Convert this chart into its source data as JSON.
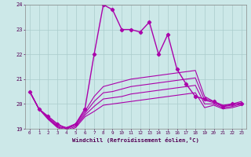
{
  "xlabel": "Windchill (Refroidissement éolien,°C)",
  "bg_color": "#cce8e8",
  "line_color": "#aa00aa",
  "grid_color": "#aacccc",
  "x": [
    0,
    1,
    2,
    3,
    4,
    5,
    6,
    7,
    8,
    9,
    10,
    11,
    12,
    13,
    14,
    15,
    16,
    17,
    18,
    19,
    20,
    21,
    22,
    23
  ],
  "series1": [
    20.5,
    19.8,
    19.5,
    19.2,
    19.0,
    19.2,
    19.8,
    22.0,
    24.0,
    23.8,
    23.0,
    23.0,
    22.9,
    23.3,
    22.0,
    22.8,
    21.4,
    20.8,
    20.3,
    20.2,
    20.1,
    19.9,
    20.0,
    20.0
  ],
  "series2": [
    20.5,
    19.8,
    19.45,
    19.15,
    19.05,
    19.2,
    19.7,
    20.3,
    20.7,
    20.8,
    20.9,
    21.0,
    21.05,
    21.1,
    21.15,
    21.2,
    21.25,
    21.3,
    21.35,
    20.3,
    20.1,
    19.95,
    20.0,
    20.1
  ],
  "series3": [
    20.5,
    19.8,
    19.42,
    19.1,
    19.0,
    19.15,
    19.62,
    20.1,
    20.45,
    20.5,
    20.6,
    20.7,
    20.75,
    20.8,
    20.85,
    20.9,
    20.95,
    21.0,
    21.05,
    20.15,
    20.05,
    19.9,
    19.95,
    20.05
  ],
  "series4": [
    20.5,
    19.8,
    19.4,
    19.08,
    18.95,
    19.1,
    19.55,
    19.9,
    20.2,
    20.25,
    20.3,
    20.4,
    20.45,
    20.5,
    20.55,
    20.6,
    20.65,
    20.7,
    20.75,
    20.0,
    20.0,
    19.85,
    19.9,
    20.0
  ],
  "series5": [
    20.5,
    19.8,
    19.38,
    19.05,
    18.9,
    19.05,
    19.48,
    19.7,
    19.95,
    20.0,
    20.05,
    20.1,
    20.15,
    20.2,
    20.25,
    20.3,
    20.35,
    20.4,
    20.45,
    19.85,
    19.95,
    19.8,
    19.85,
    19.95
  ],
  "ylim": [
    19,
    24
  ],
  "yticks": [
    19,
    20,
    21,
    22,
    23,
    24
  ],
  "xlim": [
    -0.5,
    23.5
  ],
  "xticks": [
    0,
    1,
    2,
    3,
    4,
    5,
    6,
    7,
    8,
    9,
    10,
    11,
    12,
    13,
    14,
    15,
    16,
    17,
    18,
    19,
    20,
    21,
    22,
    23
  ]
}
